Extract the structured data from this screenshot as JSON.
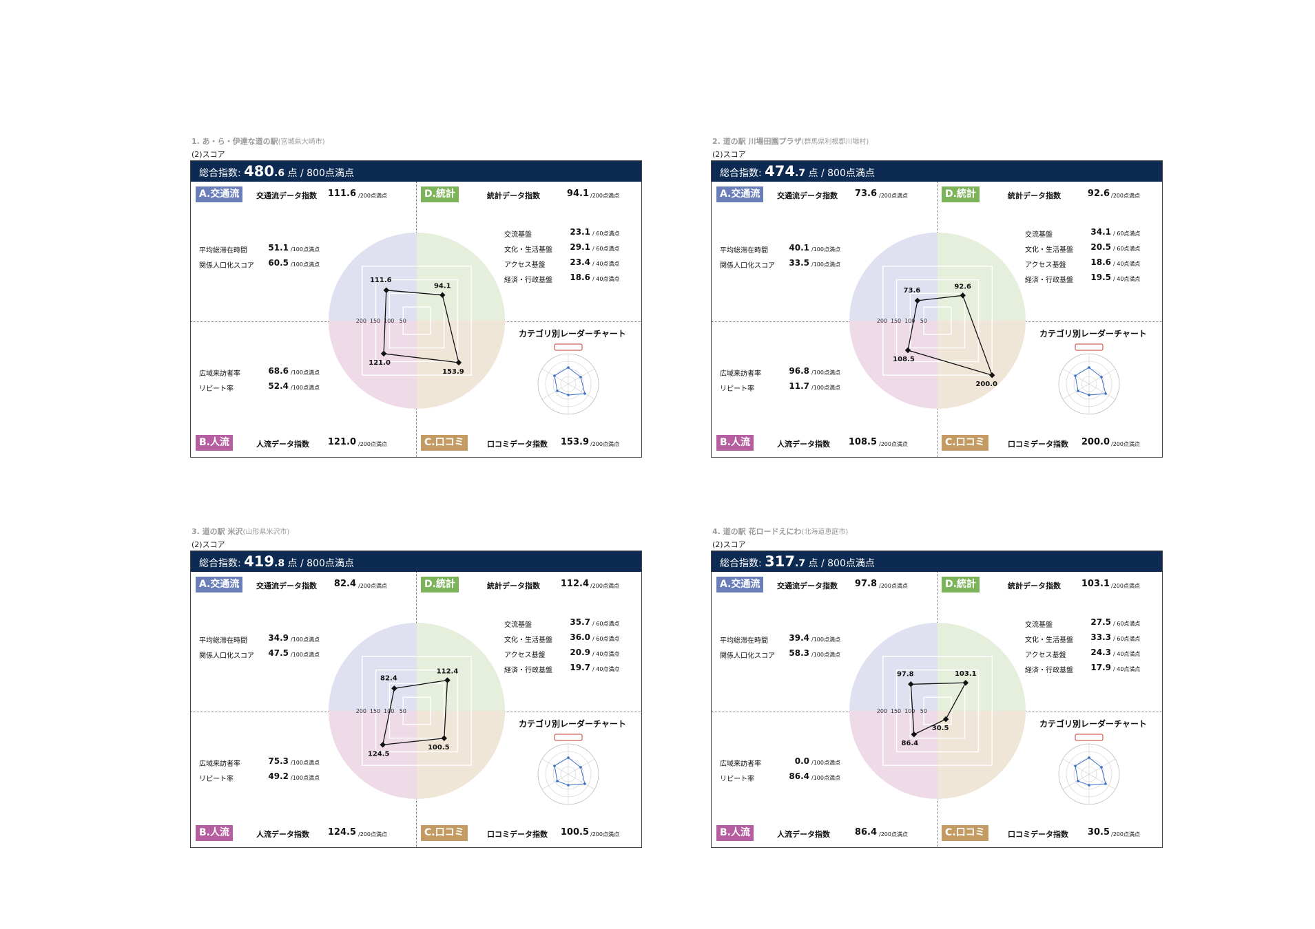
{
  "common": {
    "subheading": "(2)スコア",
    "total_label": "総合指数:",
    "total_unit": "点 / 800点満点",
    "badge_a": "A.交通流",
    "badge_d": "D.統計",
    "badge_b": "B.人流",
    "badge_c": "C.口コミ",
    "traffic_index_label": "交通流データ指数",
    "stats_index_label": "統計データ指数",
    "people_index_label": "人流データ指数",
    "review_index_label": "口コミデータ指数",
    "unit_200": "/200点満点",
    "unit_100": "/100点満点",
    "unit_60": "/ 60点満点",
    "unit_40": "/ 40点満点",
    "avg_stay_label": "平均総滞在時間",
    "related_pop_label": "関係人口化スコア",
    "wide_visitor_label": "広域来訪者率",
    "repeat_label": "リピート率",
    "exchange_label": "交流基盤",
    "culture_label": "文化・生活基盤",
    "access_label": "アクセス基盤",
    "economy_label": "経済・行政基盤",
    "mini_chart_title": "カテゴリ別レーダーチャート",
    "radar_ticks": [
      "200",
      "150",
      "100",
      "50"
    ]
  },
  "panels": [
    {
      "heading": "1. あ・ら・伊達な道の駅",
      "location": "(宮城県大崎市)",
      "total_int": "480",
      "total_dec": ".6",
      "traffic_index": "111.6",
      "stats_index": "94.1",
      "people_index": "121.0",
      "review_index": "153.9",
      "avg_stay": "51.1",
      "related_pop": "60.5",
      "wide_visitor": "68.6",
      "repeat_rate": "52.4",
      "exchange": "23.1",
      "culture": "29.1",
      "access": "23.4",
      "economy": "18.6"
    },
    {
      "heading": "2. 道の駅 川場田園プラザ",
      "location": "(群馬県利根郡川場村)",
      "total_int": "474",
      "total_dec": ".7",
      "traffic_index": "73.6",
      "stats_index": "92.6",
      "people_index": "108.5",
      "review_index": "200.0",
      "avg_stay": "40.1",
      "related_pop": "33.5",
      "wide_visitor": "96.8",
      "repeat_rate": "11.7",
      "exchange": "34.1",
      "culture": "20.5",
      "access": "18.6",
      "economy": "19.5"
    },
    {
      "heading": "3. 道の駅 米沢",
      "location": "(山形県米沢市)",
      "total_int": "419",
      "total_dec": ".8",
      "traffic_index": "82.4",
      "stats_index": "112.4",
      "people_index": "124.5",
      "review_index": "100.5",
      "avg_stay": "34.9",
      "related_pop": "47.5",
      "wide_visitor": "75.3",
      "repeat_rate": "49.2",
      "exchange": "35.7",
      "culture": "36.0",
      "access": "20.9",
      "economy": "19.7"
    },
    {
      "heading": "4. 道の駅 花ロードえにわ",
      "location": "(北海道恵庭市)",
      "total_int": "317",
      "total_dec": ".7",
      "traffic_index": "97.8",
      "stats_index": "103.1",
      "people_index": "86.4",
      "review_index": "30.5",
      "avg_stay": "39.4",
      "related_pop": "58.3",
      "wide_visitor": "0.0",
      "repeat_rate": "86.4",
      "exchange": "27.5",
      "culture": "33.3",
      "access": "24.3",
      "economy": "17.9"
    }
  ],
  "colors": {
    "header_bar": "#0d2a52",
    "badge_a": "#6a7fba",
    "badge_d": "#7db35a",
    "badge_b": "#b65e9f",
    "badge_c": "#c39b63",
    "quad_a": "#dfe1f0",
    "quad_d": "#e5efdc",
    "quad_b": "#efdbe8",
    "quad_c": "#f0e6d8"
  },
  "chart_data": [
    {
      "type": "radar",
      "categories": [
        "A.交通流",
        "D.統計",
        "C.口コミ",
        "B.人流"
      ],
      "values": [
        111.6,
        94.1,
        153.9,
        121.0
      ],
      "rlim": [
        0,
        200
      ]
    },
    {
      "type": "radar",
      "categories": [
        "A.交通流",
        "D.統計",
        "C.口コミ",
        "B.人流"
      ],
      "values": [
        73.6,
        92.6,
        200.0,
        108.5
      ],
      "rlim": [
        0,
        200
      ]
    },
    {
      "type": "radar",
      "categories": [
        "A.交通流",
        "D.統計",
        "C.口コミ",
        "B.人流"
      ],
      "values": [
        82.4,
        112.4,
        100.5,
        124.5
      ],
      "rlim": [
        0,
        200
      ]
    },
    {
      "type": "radar",
      "categories": [
        "A.交通流",
        "D.統計",
        "C.口コミ",
        "B.人流"
      ],
      "values": [
        97.8,
        103.1,
        30.5,
        86.4
      ],
      "rlim": [
        0,
        200
      ]
    }
  ]
}
